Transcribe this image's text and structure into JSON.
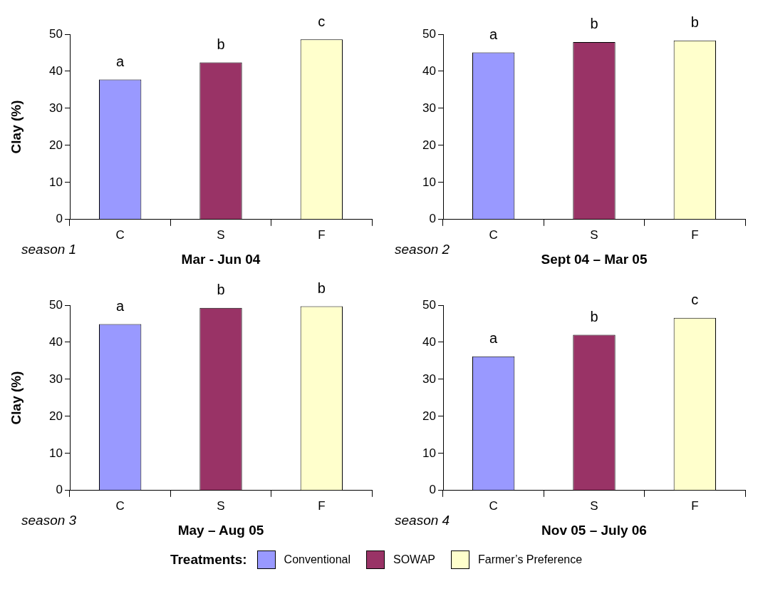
{
  "chart_data": [
    {
      "type": "bar",
      "categories": [
        "C",
        "S",
        "F"
      ],
      "values": [
        37.8,
        42.4,
        48.6
      ],
      "colors": [
        "#9999ff",
        "#993366",
        "#ffffcc"
      ],
      "ylim": [
        0,
        50
      ],
      "yticks": [
        0,
        10,
        20,
        30,
        40,
        50
      ],
      "ylabel": "Clay (%)",
      "xlabel": "Mar - Jun 04",
      "annotations": [
        "season 1",
        {
          "text": "a",
          "x": "C",
          "y": 37.8
        },
        {
          "text": "b",
          "x": "S",
          "y": 42.4
        },
        {
          "text": "c",
          "x": "F",
          "y": 48.6
        }
      ]
    },
    {
      "type": "bar",
      "categories": [
        "C",
        "S",
        "F"
      ],
      "values": [
        45.1,
        47.9,
        48.3
      ],
      "colors": [
        "#9999ff",
        "#993366",
        "#ffffcc"
      ],
      "ylim": [
        0,
        50
      ],
      "yticks": [
        0,
        10,
        20,
        30,
        40,
        50
      ],
      "xlabel": "Sept 04 – Mar 05",
      "annotations": [
        "season 2",
        {
          "text": "a",
          "x": "C",
          "y": 45.1
        },
        {
          "text": "b",
          "x": "S",
          "y": 47.9
        },
        {
          "text": "b",
          "x": "F",
          "y": 48.3
        }
      ]
    },
    {
      "type": "bar",
      "categories": [
        "C",
        "S",
        "F"
      ],
      "values": [
        44.9,
        49.3,
        49.7
      ],
      "colors": [
        "#9999ff",
        "#993366",
        "#ffffcc"
      ],
      "ylim": [
        0,
        50
      ],
      "yticks": [
        0,
        10,
        20,
        30,
        40,
        50
      ],
      "ylabel": "Clay (%)",
      "xlabel": "May – Aug 05",
      "annotations": [
        "season 3",
        {
          "text": "a",
          "x": "C",
          "y": 44.9
        },
        {
          "text": "b",
          "x": "S",
          "y": 49.3
        },
        {
          "text": "b",
          "x": "F",
          "y": 49.7
        }
      ]
    },
    {
      "type": "bar",
      "categories": [
        "C",
        "S",
        "F"
      ],
      "series": [
        {
          "name": "Conventional",
          "color": "#9999ff",
          "values": [
            36.2,
            null,
            null
          ]
        },
        {
          "name": "SOWAP",
          "color": "#993366",
          "values": [
            null,
            42.0,
            null
          ]
        },
        {
          "name": "Farmer’s Preference",
          "color": "#ffffcc",
          "values": [
            null,
            null,
            46.6
          ]
        }
      ],
      "ylim": [
        0,
        50
      ],
      "yticks": [
        0,
        10,
        20,
        30,
        40,
        50
      ],
      "xlabel": "Nov 05 – July 06",
      "legend": "bottom",
      "legend_title": "Treatments:",
      "annotations": [
        "season 4",
        {
          "text": "a",
          "x": "C",
          "y": 36.2
        },
        {
          "text": "b",
          "x": "S",
          "y": 42.0
        },
        {
          "text": "c",
          "x": "F",
          "y": 46.6
        }
      ]
    }
  ]
}
